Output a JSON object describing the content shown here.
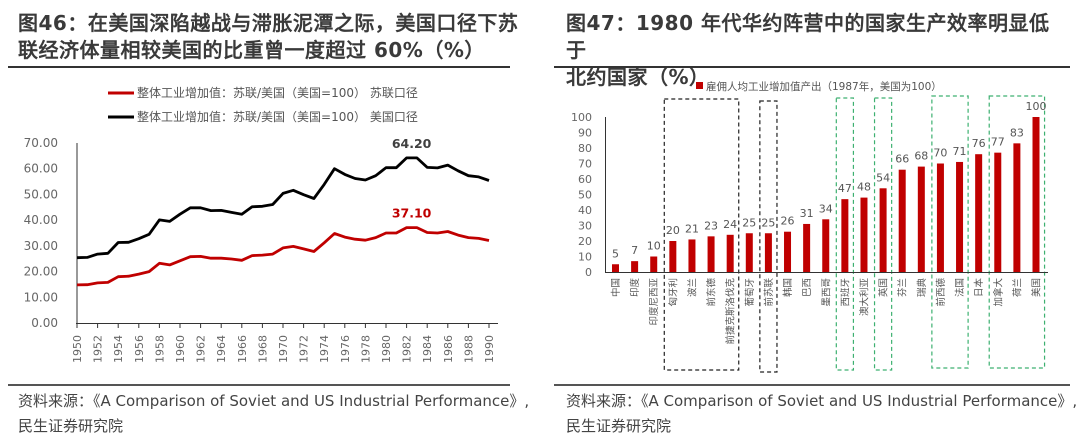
{
  "left": {
    "title": "图46：在美国深陷越战与滞胀泥潭之际，美国口径下苏联经济体量相较美国的比重曾一度超过 60%（%）",
    "title_lines": [
      "图46：在美国深陷越战与滞胀泥潭之际，美国口径下苏",
      "联经济体量相较美国的比重曾一度超过 60%（%）"
    ],
    "source_lines": [
      "资料来源：《A Comparison of Soviet and US Industrial Performance》,",
      "民生证券研究院"
    ]
  },
  "right": {
    "title_lines": [
      "图47：1980 年代华约阵营中的国家生产效率明显低于",
      "北约国家（%）"
    ],
    "source_lines": [
      "资料来源：《A Comparison of Soviet and US Industrial Performance》,",
      "民生证券研究院"
    ]
  },
  "chart_data": [
    {
      "type": "line",
      "title": "在美国深陷越战与滞胀泥潭之际，美国口径下苏联经济体量相较美国的比重曾一度超过 60%（%）",
      "xlabel": "",
      "ylabel": "",
      "ylim": [
        0,
        70
      ],
      "yticks": [
        "0.00",
        "10.00",
        "20.00",
        "30.00",
        "40.00",
        "50.00",
        "60.00",
        "70.00"
      ],
      "x": [
        1950,
        1951,
        1952,
        1953,
        1954,
        1955,
        1956,
        1957,
        1958,
        1959,
        1960,
        1961,
        1962,
        1963,
        1964,
        1965,
        1966,
        1967,
        1968,
        1969,
        1970,
        1971,
        1972,
        1973,
        1974,
        1975,
        1976,
        1977,
        1978,
        1979,
        1980,
        1981,
        1982,
        1983,
        1984,
        1985,
        1986,
        1987,
        1988,
        1989,
        1990
      ],
      "xticks": [
        "1950",
        "1952",
        "1954",
        "1956",
        "1958",
        "1960",
        "1962",
        "1964",
        "1966",
        "1968",
        "1970",
        "1972",
        "1974",
        "1976",
        "1978",
        "1980",
        "1982",
        "1984",
        "1986",
        "1988",
        "1990"
      ],
      "legend_position": "top-center",
      "grid": false,
      "series": [
        {
          "name": "整体工业增加值：苏联/美国（美国=100） 苏联口径",
          "color": "#C00000",
          "values": [
            14.8,
            14.9,
            15.6,
            15.8,
            18.0,
            18.2,
            19.0,
            20.0,
            23.2,
            22.6,
            24.2,
            25.8,
            25.9,
            25.2,
            25.2,
            24.9,
            24.4,
            26.2,
            26.4,
            26.8,
            29.2,
            29.8,
            28.8,
            27.8,
            31.2,
            34.8,
            33.4,
            32.6,
            32.2,
            33.2,
            35.0,
            35.0,
            37.1,
            37.1,
            35.2,
            35.0,
            35.6,
            34.2,
            33.2,
            32.9,
            32.1
          ],
          "annotation": {
            "x": 1982,
            "label": "37.10"
          }
        },
        {
          "name": "整体工业增加值：苏联/美国（美国=100） 美国口径",
          "color": "#000000",
          "values": [
            25.4,
            25.5,
            26.8,
            27.1,
            31.3,
            31.4,
            32.8,
            34.5,
            40.1,
            39.5,
            42.3,
            44.8,
            44.8,
            43.7,
            43.8,
            43.0,
            42.3,
            45.2,
            45.4,
            46.1,
            50.4,
            51.6,
            49.9,
            48.4,
            53.9,
            60.0,
            57.8,
            56.2,
            55.6,
            57.3,
            60.4,
            60.4,
            64.2,
            64.2,
            60.5,
            60.3,
            61.4,
            59.2,
            57.3,
            56.8,
            55.4
          ],
          "annotation": {
            "x": 1982,
            "label": "64.20"
          }
        }
      ]
    },
    {
      "type": "bar",
      "title": "1980 年代华约阵营中的国家生产效率明显低于北约国家（%）",
      "xlabel": "",
      "ylabel": "",
      "ylim": [
        0,
        100
      ],
      "yticks": [
        "0",
        "10",
        "20",
        "30",
        "40",
        "50",
        "60",
        "70",
        "80",
        "90",
        "100"
      ],
      "legend_position": "top-center",
      "grid": false,
      "series": [
        {
          "name": "雇佣人均工业增加值产出（1987年，美国为100）",
          "color": "#C00000",
          "values": [
            5,
            7,
            10,
            20,
            21,
            23,
            24,
            25,
            25,
            26,
            31,
            34,
            47,
            48,
            54,
            66,
            68,
            70,
            71,
            76,
            77,
            83,
            100
          ]
        }
      ],
      "categories": [
        "中国",
        "印度",
        "印度尼西亚",
        "匈牙利",
        "波兰",
        "前东德",
        "前捷克斯洛伐克",
        "葡萄牙",
        "前苏联",
        "韩国",
        "巴西",
        "墨西哥",
        "西班牙",
        "澳大利亚",
        "英国",
        "芬兰",
        "瑞典",
        "前西德",
        "法国",
        "日本",
        "加拿大",
        "荷兰",
        "美国"
      ],
      "annotations": {
        "black_dashed_boxes": [
          [
            "匈牙利",
            "前捷克斯洛伐克"
          ],
          [
            "前苏联",
            "前苏联"
          ]
        ],
        "green_dashed_boxes": [
          [
            "西班牙",
            "西班牙"
          ],
          [
            "英国",
            "英国"
          ],
          [
            "前西德",
            "法国"
          ],
          [
            "加拿大",
            "美国"
          ]
        ]
      }
    }
  ]
}
